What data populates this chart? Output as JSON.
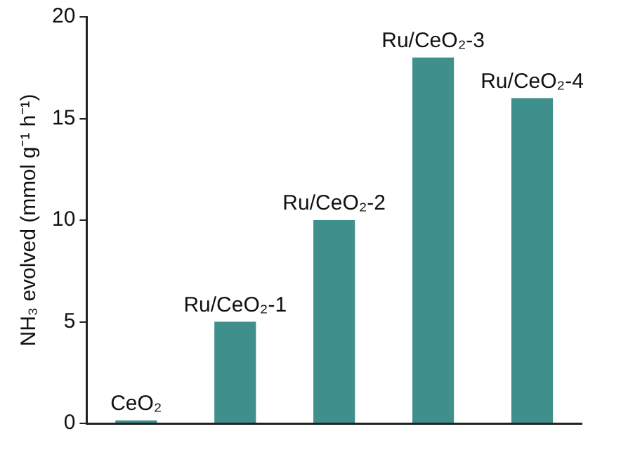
{
  "chart_data": {
    "type": "bar",
    "ylabel": "NH₃ evolved (mmol g⁻¹ h⁻¹)",
    "categories": [
      "CeO₂",
      "Ru/CeO₂-1",
      "Ru/CeO₂-2",
      "Ru/CeO₂-3",
      "Ru/CeO₂-4"
    ],
    "values": [
      0.15,
      5,
      10,
      18,
      16
    ],
    "color": "#3f8f8c",
    "ylim": [
      0,
      20
    ],
    "yticks": [
      0,
      5,
      10,
      15,
      20
    ],
    "grid": false,
    "legend": false,
    "tick_labels": "y"
  }
}
